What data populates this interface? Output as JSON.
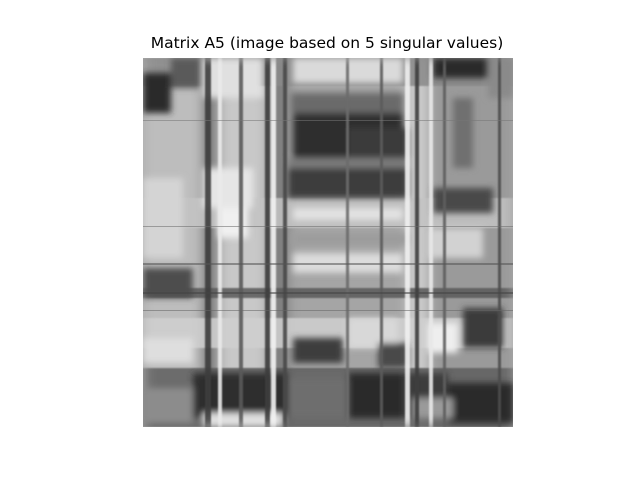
{
  "figure": {
    "title": "Matrix A5 (image based on 5 singular values)"
  },
  "image": {
    "colormap": "gray",
    "axes": "off"
  }
}
